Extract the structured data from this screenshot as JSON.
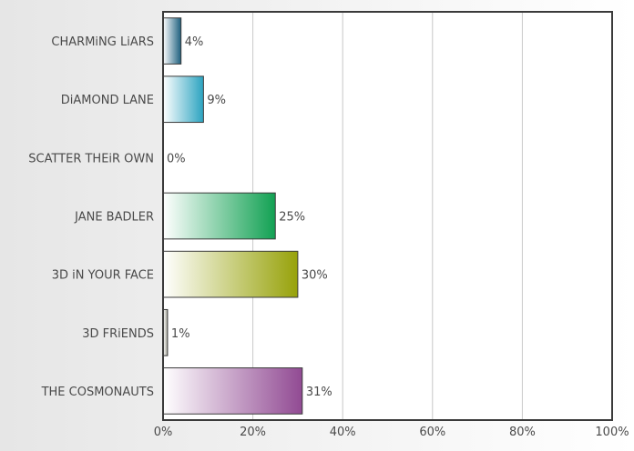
{
  "chart_data": {
    "type": "bar",
    "orientation": "horizontal",
    "categories": [
      "CHARMiNG LiARS",
      "DiAMOND LANE",
      "SCATTER THEiR OWN",
      "JANE BADLER",
      "3D iN YOUR FACE",
      "3D FRiENDS",
      "THE COSMONAUTS"
    ],
    "values": [
      4,
      9,
      0,
      25,
      30,
      1,
      31
    ],
    "value_labels": [
      "4%",
      "9%",
      "0%",
      "25%",
      "30%",
      "1%",
      "31%"
    ],
    "xlim": [
      0,
      100
    ],
    "x_ticks": [
      0,
      20,
      40,
      60,
      80,
      100
    ],
    "x_tick_labels": [
      "0%",
      "20%",
      "40%",
      "60%",
      "80%",
      "100%"
    ],
    "grid": "vertical",
    "bar_colors": [
      "#1d5f7e",
      "#2ba3c0",
      "#8fb3c4",
      "#12a153",
      "#97a20a",
      "#a7a79a",
      "#914a93"
    ]
  }
}
